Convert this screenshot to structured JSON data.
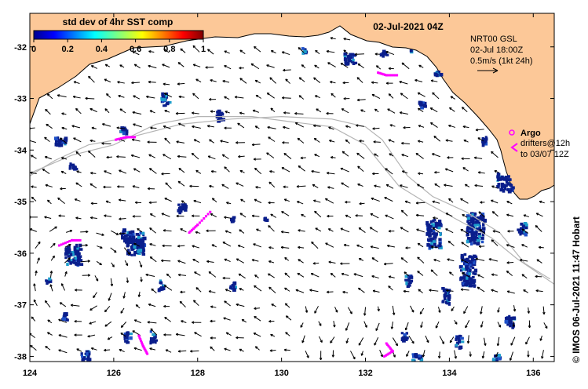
{
  "map": {
    "title": "02-Jul-2021 04Z",
    "lon_ticks": [
      124,
      126,
      128,
      130,
      132,
      134,
      136
    ],
    "lat_ticks": [
      -32,
      -33,
      -34,
      -35,
      -36,
      -37,
      -38
    ],
    "lon_range": [
      124,
      136.5
    ],
    "lat_range": [
      -38.1,
      -31.35
    ],
    "land_color": "#fcc898",
    "coast_color": "#000000",
    "route_color": "#b4b4b4"
  },
  "colorbar": {
    "title": "std dev of 4hr SST comp",
    "min": 0,
    "max": 1,
    "ticks": [
      "0",
      "0.2",
      "0.4",
      "0.6",
      "0.8",
      "1"
    ]
  },
  "currents": {
    "product": "NRT00 GSL",
    "time": "02-Jul 18:00Z",
    "scale_label": "0.5m/s (1kt 24h)",
    "arrow_color": "#000000"
  },
  "argo": {
    "label": "Argo",
    "color": "#ff00ff"
  },
  "drifters": {
    "line1": "drifters@12h",
    "line2": "to 03/07 12Z",
    "color": "#ff00ff"
  },
  "credit": "© IMOS 06-Jul-2021 11:47 Hobart"
}
